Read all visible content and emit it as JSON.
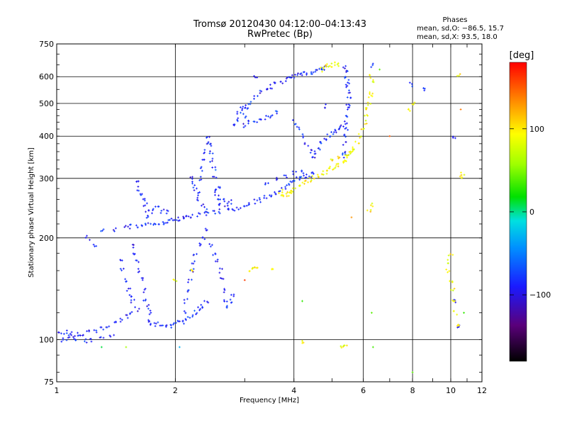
{
  "chart_data": {
    "type": "scatter",
    "title": "Tromsø 20120430 04:12:00–04:13:43",
    "subtitle": "RwPretec (Bp)",
    "xlabel": "Frequency [MHz]",
    "ylabel": "Stationary phase Virtual Height [km]",
    "x_scale": "log",
    "y_scale": "log",
    "xlim": [
      1,
      12
    ],
    "ylim": [
      75,
      750
    ],
    "x_ticks": [
      1,
      2,
      4,
      6,
      8,
      10,
      12
    ],
    "x_tick_labels": [
      "1",
      "2",
      "4",
      "6",
      "8",
      "10",
      "12"
    ],
    "y_ticks": [
      75,
      100,
      200,
      300,
      400,
      500,
      600,
      750
    ],
    "y_tick_labels": [
      "75",
      "100",
      "200",
      "300",
      "400",
      "500",
      "600",
      "750"
    ],
    "grid": true,
    "phases_info": {
      "title": "Phases",
      "line1": "mean, sd,O: −86.5, 15.7",
      "line2": "mean, sd,X:  93.5, 18.0"
    },
    "colorbar": {
      "label": "[deg]",
      "min": -180,
      "max": 180,
      "ticks": [
        100,
        0,
        -100
      ],
      "tick_labels": [
        "100",
        "0",
        "−100"
      ]
    },
    "series": [
      {
        "mode": "O",
        "phase_mean": -86.5,
        "phase_sd": 15.7,
        "points": [
          [
            1.02,
            104
          ],
          [
            1.05,
            105
          ],
          [
            1.08,
            104
          ],
          [
            1.1,
            103
          ],
          [
            1.13,
            104
          ],
          [
            1.16,
            103
          ],
          [
            1.2,
            105
          ],
          [
            1.25,
            106
          ],
          [
            1.3,
            108
          ],
          [
            1.35,
            110
          ],
          [
            1.4,
            112
          ],
          [
            1.45,
            114
          ],
          [
            1.5,
            117
          ],
          [
            1.55,
            120
          ],
          [
            1.6,
            123
          ],
          [
            1.04,
            100
          ],
          [
            1.07,
            101
          ],
          [
            1.12,
            100
          ],
          [
            1.18,
            99
          ],
          [
            1.22,
            100
          ],
          [
            1.3,
            101
          ],
          [
            1.38,
            102
          ],
          [
            1.2,
            200
          ],
          [
            1.3,
            210
          ],
          [
            1.4,
            212
          ],
          [
            1.5,
            215
          ],
          [
            1.55,
            216
          ],
          [
            1.6,
            217
          ],
          [
            1.65,
            218
          ],
          [
            1.7,
            219
          ],
          [
            1.75,
            220
          ],
          [
            1.8,
            221
          ],
          [
            1.85,
            222
          ],
          [
            1.9,
            223
          ],
          [
            1.95,
            225
          ],
          [
            2.0,
            226
          ],
          [
            2.05,
            228
          ],
          [
            2.1,
            229
          ],
          [
            2.15,
            230
          ],
          [
            2.2,
            232
          ],
          [
            2.3,
            234
          ],
          [
            2.4,
            236
          ],
          [
            2.5,
            238
          ],
          [
            2.6,
            240
          ],
          [
            2.7,
            242
          ],
          [
            2.8,
            244
          ],
          [
            2.9,
            246
          ],
          [
            3.0,
            250
          ],
          [
            3.1,
            253
          ],
          [
            3.2,
            256
          ],
          [
            3.3,
            259
          ],
          [
            3.4,
            263
          ],
          [
            3.5,
            268
          ],
          [
            3.6,
            273
          ],
          [
            3.7,
            278
          ],
          [
            3.8,
            283
          ],
          [
            3.9,
            290
          ],
          [
            4.0,
            295
          ],
          [
            4.1,
            299
          ],
          [
            4.2,
            302
          ],
          [
            4.3,
            305
          ],
          [
            4.4,
            307
          ],
          [
            4.5,
            310
          ],
          [
            1.7,
            230
          ],
          [
            1.75,
            240
          ],
          [
            1.8,
            245
          ],
          [
            1.85,
            240
          ],
          [
            1.9,
            238
          ],
          [
            1.6,
            290
          ],
          [
            1.62,
            280
          ],
          [
            1.64,
            270
          ],
          [
            1.66,
            260
          ],
          [
            1.68,
            250
          ],
          [
            1.7,
            240
          ],
          [
            1.55,
            190
          ],
          [
            1.57,
            180
          ],
          [
            1.6,
            170
          ],
          [
            1.62,
            160
          ],
          [
            1.64,
            150
          ],
          [
            1.66,
            140
          ],
          [
            1.68,
            130
          ],
          [
            1.7,
            125
          ],
          [
            1.72,
            120
          ],
          [
            1.45,
            170
          ],
          [
            1.47,
            160
          ],
          [
            1.5,
            150
          ],
          [
            1.52,
            140
          ],
          [
            1.54,
            135
          ],
          [
            1.56,
            130
          ],
          [
            1.7,
            113
          ],
          [
            1.75,
            112
          ],
          [
            1.8,
            111
          ],
          [
            1.85,
            111
          ],
          [
            1.9,
            110
          ],
          [
            1.95,
            110
          ],
          [
            2.0,
            111
          ],
          [
            2.05,
            112
          ],
          [
            2.1,
            113
          ],
          [
            2.15,
            115
          ],
          [
            2.2,
            117
          ],
          [
            2.25,
            120
          ],
          [
            2.3,
            123
          ],
          [
            2.35,
            126
          ],
          [
            2.4,
            130
          ],
          [
            2.1,
            120
          ],
          [
            2.12,
            130
          ],
          [
            2.15,
            140
          ],
          [
            2.18,
            150
          ],
          [
            2.2,
            160
          ],
          [
            2.22,
            170
          ],
          [
            2.25,
            180
          ],
          [
            2.3,
            190
          ],
          [
            2.2,
            300
          ],
          [
            2.22,
            290
          ],
          [
            2.25,
            280
          ],
          [
            2.28,
            270
          ],
          [
            2.3,
            260
          ],
          [
            2.35,
            250
          ],
          [
            2.4,
            240
          ],
          [
            2.3,
            300
          ],
          [
            2.32,
            320
          ],
          [
            2.35,
            340
          ],
          [
            2.38,
            360
          ],
          [
            2.4,
            380
          ],
          [
            2.42,
            400
          ],
          [
            2.44,
            380
          ],
          [
            2.46,
            360
          ],
          [
            2.48,
            340
          ],
          [
            2.5,
            320
          ],
          [
            2.52,
            300
          ],
          [
            2.55,
            280
          ],
          [
            2.58,
            260
          ],
          [
            2.6,
            250
          ],
          [
            2.35,
            200
          ],
          [
            2.4,
            210
          ],
          [
            2.45,
            190
          ],
          [
            2.5,
            180
          ],
          [
            2.55,
            170
          ],
          [
            2.6,
            160
          ],
          [
            2.62,
            150
          ],
          [
            2.65,
            140
          ],
          [
            2.68,
            130
          ],
          [
            2.7,
            125
          ],
          [
            2.75,
            130
          ],
          [
            2.8,
            135
          ],
          [
            2.55,
            270
          ],
          [
            2.6,
            280
          ],
          [
            2.65,
            260
          ],
          [
            2.7,
            250
          ],
          [
            2.75,
            255
          ],
          [
            2.8,
            430
          ],
          [
            2.85,
            450
          ],
          [
            2.9,
            470
          ],
          [
            2.95,
            480
          ],
          [
            3.0,
            490
          ],
          [
            3.0,
            460
          ],
          [
            3.05,
            480
          ],
          [
            3.1,
            500
          ],
          [
            3.2,
            520
          ],
          [
            3.3,
            540
          ],
          [
            3.4,
            550
          ],
          [
            3.5,
            560
          ],
          [
            3.6,
            570
          ],
          [
            3.7,
            580
          ],
          [
            3.8,
            590
          ],
          [
            3.9,
            595
          ],
          [
            4.0,
            600
          ],
          [
            4.1,
            605
          ],
          [
            4.2,
            610
          ],
          [
            4.3,
            612
          ],
          [
            4.4,
            615
          ],
          [
            4.5,
            620
          ],
          [
            4.6,
            625
          ],
          [
            4.7,
            630
          ],
          [
            4.8,
            635
          ],
          [
            3.0,
            430
          ],
          [
            3.1,
            440
          ],
          [
            3.2,
            445
          ],
          [
            3.3,
            450
          ],
          [
            3.4,
            455
          ],
          [
            3.5,
            460
          ],
          [
            3.6,
            470
          ],
          [
            5.4,
            640
          ],
          [
            5.42,
            620
          ],
          [
            5.44,
            600
          ],
          [
            5.46,
            580
          ],
          [
            5.48,
            560
          ],
          [
            5.5,
            540
          ],
          [
            5.52,
            520
          ],
          [
            5.5,
            500
          ],
          [
            5.48,
            480
          ],
          [
            5.46,
            460
          ],
          [
            5.44,
            440
          ],
          [
            5.42,
            420
          ],
          [
            5.4,
            400
          ],
          [
            5.38,
            380
          ],
          [
            5.36,
            360
          ],
          [
            5.34,
            350
          ],
          [
            4.5,
            360
          ],
          [
            4.6,
            370
          ],
          [
            4.7,
            380
          ],
          [
            4.8,
            390
          ],
          [
            4.9,
            400
          ],
          [
            5.0,
            410
          ],
          [
            5.1,
            415
          ],
          [
            5.2,
            420
          ],
          [
            5.3,
            425
          ],
          [
            4.0,
            440
          ],
          [
            4.1,
            420
          ],
          [
            4.2,
            400
          ],
          [
            4.3,
            380
          ],
          [
            4.4,
            360
          ],
          [
            4.5,
            350
          ],
          [
            3.4,
            290
          ],
          [
            3.6,
            300
          ],
          [
            3.8,
            305
          ],
          [
            4.0,
            310
          ],
          [
            4.2,
            315
          ],
          [
            10.2,
            400
          ],
          [
            10.3,
            130
          ],
          [
            10.5,
            110
          ],
          [
            6.3,
            650
          ],
          [
            7.9,
            570
          ],
          [
            8.6,
            550
          ],
          [
            4.8,
            490
          ],
          [
            1.25,
            191
          ],
          [
            3.2,
            600
          ]
        ]
      },
      {
        "mode": "X",
        "phase_mean": 93.5,
        "phase_sd": 18.0,
        "points": [
          [
            3.7,
            275
          ],
          [
            3.75,
            270
          ],
          [
            3.8,
            268
          ],
          [
            3.85,
            270
          ],
          [
            3.9,
            272
          ],
          [
            3.95,
            275
          ],
          [
            4.0,
            278
          ],
          [
            4.1,
            283
          ],
          [
            4.2,
            288
          ],
          [
            4.3,
            292
          ],
          [
            4.4,
            297
          ],
          [
            4.5,
            302
          ],
          [
            4.6,
            306
          ],
          [
            4.7,
            310
          ],
          [
            4.8,
            314
          ],
          [
            4.9,
            318
          ],
          [
            5.0,
            322
          ],
          [
            5.1,
            326
          ],
          [
            5.2,
            330
          ],
          [
            5.3,
            336
          ],
          [
            5.4,
            342
          ],
          [
            5.5,
            350
          ],
          [
            5.6,
            360
          ],
          [
            5.7,
            370
          ],
          [
            5.8,
            385
          ],
          [
            5.9,
            400
          ],
          [
            6.0,
            420
          ],
          [
            6.05,
            440
          ],
          [
            6.1,
            460
          ],
          [
            6.15,
            480
          ],
          [
            6.2,
            500
          ],
          [
            6.25,
            520
          ],
          [
            6.3,
            540
          ],
          [
            4.8,
            640
          ],
          [
            4.9,
            645
          ],
          [
            5.0,
            650
          ],
          [
            5.1,
            652
          ],
          [
            5.2,
            650
          ],
          [
            4.7,
            630
          ],
          [
            5.0,
            340
          ],
          [
            5.2,
            345
          ],
          [
            5.4,
            350
          ],
          [
            5.6,
            355
          ],
          [
            3.1,
            160
          ],
          [
            3.15,
            163
          ],
          [
            3.2,
            165
          ],
          [
            6.3,
            580
          ],
          [
            6.2,
            600
          ],
          [
            7.9,
            480
          ],
          [
            8.0,
            500
          ],
          [
            10.0,
            150
          ],
          [
            10.1,
            140
          ],
          [
            10.2,
            130
          ],
          [
            10.3,
            120
          ],
          [
            10.4,
            110
          ],
          [
            9.8,
            160
          ],
          [
            9.9,
            170
          ],
          [
            10.0,
            180
          ],
          [
            10.6,
            300
          ],
          [
            10.7,
            310
          ],
          [
            10.5,
            610
          ],
          [
            5.3,
            95
          ],
          [
            5.4,
            96
          ],
          [
            4.2,
            98
          ],
          [
            3.5,
            160
          ],
          [
            6.3,
            250
          ],
          [
            6.2,
            240
          ],
          [
            2.0,
            150
          ],
          [
            2.2,
            160
          ]
        ]
      }
    ],
    "outliers": [
      {
        "x": 1.3,
        "y": 95,
        "phase": 10
      },
      {
        "x": 1.5,
        "y": 95,
        "phase": 60
      },
      {
        "x": 2.05,
        "y": 95,
        "phase": -30
      },
      {
        "x": 4.2,
        "y": 130,
        "phase": 30
      },
      {
        "x": 6.3,
        "y": 120,
        "phase": 40
      },
      {
        "x": 6.35,
        "y": 95,
        "phase": 35
      },
      {
        "x": 8.0,
        "y": 80,
        "phase": 40
      },
      {
        "x": 10.8,
        "y": 120,
        "phase": 30
      },
      {
        "x": 6.6,
        "y": 630,
        "phase": 40
      },
      {
        "x": 7.0,
        "y": 400,
        "phase": 150
      },
      {
        "x": 10.6,
        "y": 480,
        "phase": 140
      },
      {
        "x": 3.0,
        "y": 150,
        "phase": 160
      },
      {
        "x": 5.6,
        "y": 230,
        "phase": 130
      }
    ]
  }
}
